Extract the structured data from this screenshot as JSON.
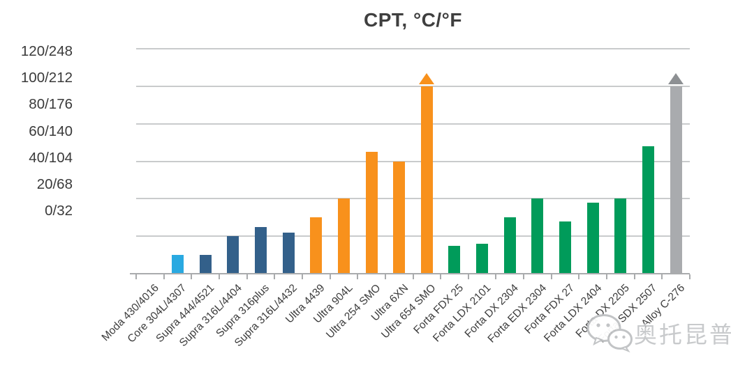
{
  "title": "CPT, °C/°F",
  "watermark": {
    "icon": "wechat-icon",
    "text": "奥托昆普"
  },
  "chart_data": {
    "type": "bar",
    "title": "CPT, °C/°F",
    "categories": [
      "Moda 430/4016",
      "Core 304L/4307",
      "Supra 444/4521",
      "Supra 316L/4404",
      "Supra 316plus",
      "Supra 316L/4432",
      "Ultra 4439",
      "Ultra 904L",
      "Ultra 254 SMO",
      "Ultra 6XN",
      "Ultra 654 SMO",
      "Forta FDX 25",
      "Forta LDX 2101",
      "Forta DX 2304",
      "Forta EDX 2304",
      "Forta FDX 27",
      "Forta LDX 2404",
      "Forta DX 2205",
      "Forta SDX 2507",
      "Alloy C-276"
    ],
    "values": [
      0,
      10,
      10,
      20,
      25,
      22,
      30,
      40,
      65,
      60,
      100,
      15,
      16,
      30,
      40,
      28,
      38,
      40,
      68,
      100
    ],
    "bar_colors": [
      "#29a9e1",
      "#29a9e1",
      "#33608a",
      "#33608a",
      "#33608a",
      "#33608a",
      "#f8911c",
      "#f8911c",
      "#f8911c",
      "#f8911c",
      "#f8911c",
      "#009b5a",
      "#009b5a",
      "#009b5a",
      "#009b5a",
      "#009b5a",
      "#009b5a",
      "#009b5a",
      "#009b5a",
      "#a9abae"
    ],
    "exceeds_scale": [
      false,
      false,
      false,
      false,
      false,
      false,
      false,
      false,
      false,
      false,
      true,
      false,
      false,
      false,
      false,
      false,
      false,
      false,
      false,
      true
    ],
    "arrow_colors": [
      "#f8911c",
      "#8d9093"
    ],
    "y_axis": {
      "tick_labels": [
        "120/248",
        "100/212",
        "80/176",
        "60/140",
        "40/104",
        "20/68",
        "0/32"
      ],
      "min": 0,
      "max": 120,
      "gridline_step": 20
    },
    "xlabel": "",
    "ylabel": "",
    "grid": "horizontal-on",
    "legend": "none"
  },
  "colors": {
    "core_light_blue": "#29a9e1",
    "supra_dark_blue": "#33608a",
    "ultra_orange": "#f8911c",
    "forta_green": "#009b5a",
    "alloy_gray": "#a9abae",
    "gridline": "#c9cbcc",
    "axis": "#a9abad",
    "title_text": "#3f3f3f",
    "label_text": "#3c3c3c",
    "watermark_gray": "#c6c8ca"
  }
}
